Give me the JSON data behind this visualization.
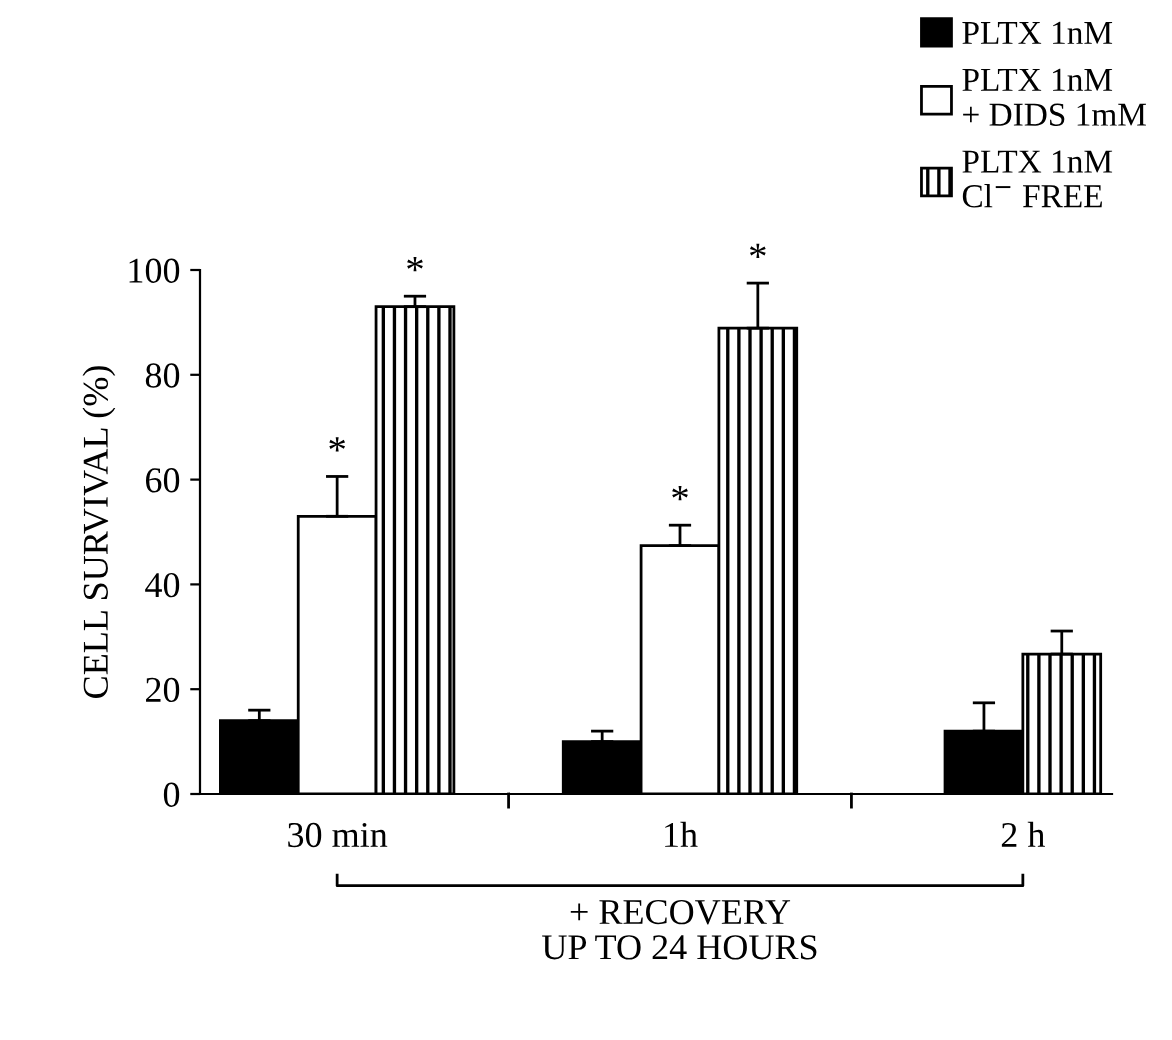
{
  "chart_data": {
    "type": "bar",
    "categories": [
      "30 min",
      "1h",
      "2 h"
    ],
    "ylabel": "CELL SURVIVAL (%)",
    "series": [
      {
        "name": "PLTX 1nM",
        "color": "#000000",
        "values": [
          14,
          10,
          12
        ],
        "errors": [
          [
            14,
            16
          ],
          [
            10,
            12
          ],
          [
            12,
            17.4
          ]
        ]
      },
      {
        "name": "PLTX 1nM\n+ DIDS 1mM",
        "color": "#ffffff",
        "values": [
          53,
          47.4,
          null
        ],
        "value_labels": [
          "*",
          "*",
          null
        ],
        "errors": [
          [
            53,
            60.6
          ],
          [
            47.4,
            51.3
          ],
          null
        ]
      },
      {
        "name": "PLTX 1nM\nCl$^{−}$ FREE",
        "color": "#000000",
        "values": [
          93,
          88.9,
          26.7
        ],
        "value_labels": [
          "*",
          "*",
          null
        ],
        "errors": [
          [
            93,
            95
          ],
          [
            88.9,
            97.5
          ],
          [
            26.7,
            31.1
          ]
        ]
      }
    ],
    "ylim": [
      0,
      100
    ],
    "yticks": [
      0,
      20,
      40,
      60,
      80,
      100
    ],
    "grid": false,
    "legend": "top right",
    "annotations": [
      "+ RECOVERY\nUP TO 24 HOURS"
    ]
  }
}
